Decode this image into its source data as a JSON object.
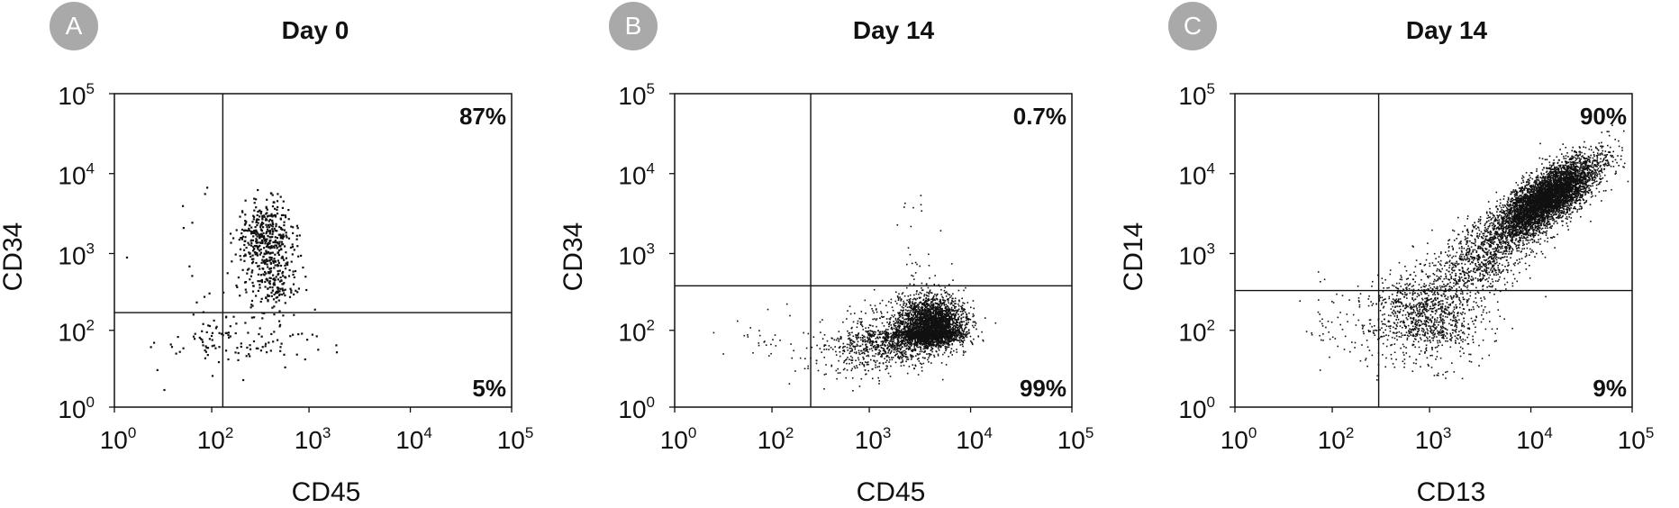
{
  "chart_data": [
    {
      "type": "scatter",
      "panel_label": "A",
      "title": "Day 0",
      "xlabel": "CD45",
      "ylabel": "CD34",
      "x_ticks": [
        {
          "base": "10",
          "exp": "0"
        },
        {
          "base": "10",
          "exp": "2"
        },
        {
          "base": "10",
          "exp": "3"
        },
        {
          "base": "10",
          "exp": "4"
        },
        {
          "base": "10",
          "exp": "5"
        }
      ],
      "y_ticks": [
        {
          "base": "10",
          "exp": "0"
        },
        {
          "base": "10",
          "exp": "2"
        },
        {
          "base": "10",
          "exp": "3"
        },
        {
          "base": "10",
          "exp": "4"
        },
        {
          "base": "10",
          "exp": "5"
        }
      ],
      "x_gate": 130,
      "y_gate": 170,
      "quadrants": {
        "upper_right": "87%",
        "lower_right": "5%"
      },
      "clusters": [
        {
          "cx": 350,
          "cy": 1600,
          "sx": 0.15,
          "sy": 0.22,
          "n": 400
        },
        {
          "cx": 420,
          "cy": 450,
          "sx": 0.13,
          "sy": 0.2,
          "n": 160
        },
        {
          "cx": 200,
          "cy": 60,
          "sx": 0.45,
          "sy": 0.35,
          "n": 110
        },
        {
          "cx": 50,
          "cy": 300,
          "sx": 0.7,
          "sy": 1.0,
          "n": 28
        }
      ],
      "point_size": 2.2
    },
    {
      "type": "scatter",
      "panel_label": "B",
      "title": "Day 14",
      "xlabel": "CD45",
      "ylabel": "CD34",
      "x_ticks": [
        {
          "base": "10",
          "exp": "0"
        },
        {
          "base": "10",
          "exp": "2"
        },
        {
          "base": "10",
          "exp": "3"
        },
        {
          "base": "10",
          "exp": "4"
        },
        {
          "base": "10",
          "exp": "5"
        }
      ],
      "y_ticks": [
        {
          "base": "10",
          "exp": "0"
        },
        {
          "base": "10",
          "exp": "2"
        },
        {
          "base": "10",
          "exp": "3"
        },
        {
          "base": "10",
          "exp": "4"
        },
        {
          "base": "10",
          "exp": "5"
        }
      ],
      "x_gate": 250,
      "y_gate": 380,
      "quadrants": {
        "upper_right": "0.7%",
        "lower_right": "99%"
      },
      "clusters": [
        {
          "cx": 4000,
          "cy": 110,
          "sx": 0.16,
          "sy": 0.2,
          "n": 3200
        },
        {
          "cx": 1800,
          "cy": 60,
          "sx": 0.28,
          "sy": 0.28,
          "n": 800
        },
        {
          "cx": 1000,
          "cy": 25,
          "sx": 0.3,
          "sy": 0.35,
          "n": 250
        },
        {
          "cx": 3000,
          "cy": 1200,
          "sx": 0.1,
          "sy": 0.4,
          "n": 25
        },
        {
          "cx": 90,
          "cy": 60,
          "sx": 0.4,
          "sy": 0.35,
          "n": 40
        }
      ],
      "point_size": 1.6
    },
    {
      "type": "scatter",
      "panel_label": "C",
      "title": "Day 14",
      "xlabel": "CD13",
      "ylabel": "CD14",
      "x_ticks": [
        {
          "base": "10",
          "exp": "0"
        },
        {
          "base": "10",
          "exp": "2"
        },
        {
          "base": "10",
          "exp": "3"
        },
        {
          "base": "10",
          "exp": "4"
        },
        {
          "base": "10",
          "exp": "5"
        }
      ],
      "y_ticks": [
        {
          "base": "10",
          "exp": "0"
        },
        {
          "base": "10",
          "exp": "2"
        },
        {
          "base": "10",
          "exp": "3"
        },
        {
          "base": "10",
          "exp": "4"
        },
        {
          "base": "10",
          "exp": "5"
        }
      ],
      "x_gate": 300,
      "y_gate": 330,
      "quadrants": {
        "upper_right": "90%",
        "lower_right": "9%"
      },
      "clusters": [
        {
          "cx": 14000,
          "cy": 5000,
          "sx": 0.25,
          "sy": 0.25,
          "rho": 0.75,
          "n": 5200
        },
        {
          "cx": 3500,
          "cy": 1000,
          "sx": 0.3,
          "sy": 0.3,
          "rho": 0.6,
          "n": 900
        },
        {
          "cx": 900,
          "cy": 180,
          "sx": 0.3,
          "sy": 0.25,
          "n": 900
        },
        {
          "cx": 700,
          "cy": 40,
          "sx": 0.35,
          "sy": 0.4,
          "n": 150
        },
        {
          "cx": 100,
          "cy": 120,
          "sx": 0.3,
          "sy": 0.3,
          "n": 40
        }
      ],
      "point_size": 1.6
    }
  ]
}
